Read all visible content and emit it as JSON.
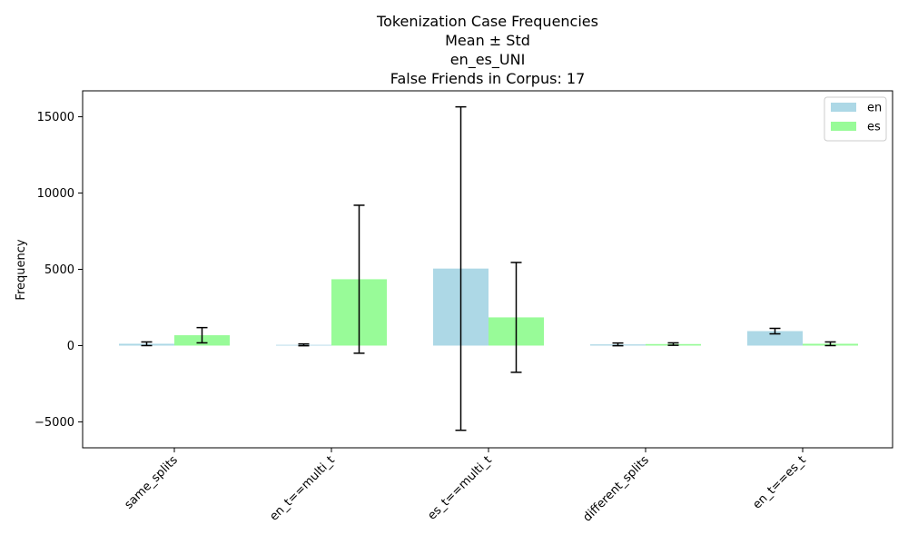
{
  "chart_data": {
    "type": "bar",
    "title_lines": [
      "Tokenization Case Frequencies",
      "Mean ± Std",
      "en_es_UNI",
      "False Friends in Corpus: 17"
    ],
    "xlabel": "",
    "ylabel": "Frequency",
    "categories": [
      "same_splits",
      "en_t==multi_t",
      "es_t==multi_t",
      "different_splits",
      "en_t==es_t"
    ],
    "ylim": [
      -6700,
      16700
    ],
    "yticks": [
      -5000,
      0,
      5000,
      10000,
      15000
    ],
    "ytick_labels": [
      "−5000",
      "0",
      "5000",
      "10000",
      "15000"
    ],
    "grid": false,
    "legend_position": "top-right",
    "series": [
      {
        "name": "en",
        "color": "#add8e6",
        "values": [
          120,
          50,
          5050,
          80,
          950
        ],
        "std": [
          120,
          60,
          10600,
          90,
          180
        ]
      },
      {
        "name": "es",
        "color": "#98fb98",
        "values": [
          680,
          4350,
          1850,
          100,
          120
        ],
        "std": [
          500,
          4850,
          3600,
          80,
          120
        ]
      }
    ]
  }
}
